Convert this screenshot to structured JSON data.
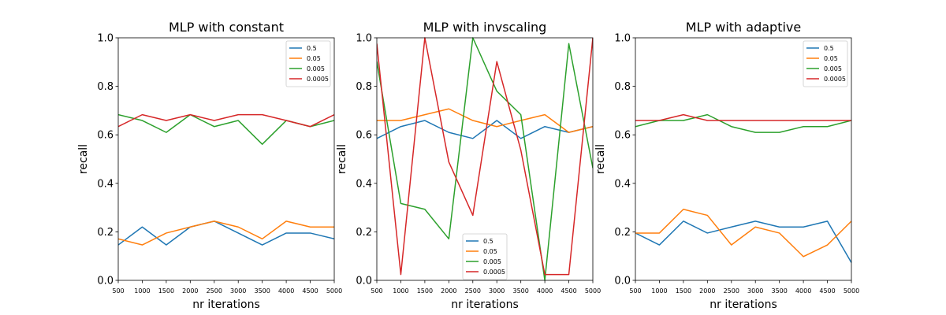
{
  "colors": {
    "0.5": "#1f77b4",
    "0.05": "#ff7f0e",
    "0.005": "#2ca02c",
    "0.0005": "#d62728"
  },
  "chart_data": [
    {
      "type": "line",
      "title": "MLP with constant",
      "xlabel": "nr iterations",
      "ylabel": "recall",
      "xlim": [
        500,
        5000
      ],
      "ylim": [
        0.0,
        1.0
      ],
      "x": [
        500,
        1000,
        1500,
        2000,
        2500,
        3000,
        3500,
        4000,
        4500,
        5000
      ],
      "xticks": [
        "500",
        "1000",
        "1500",
        "2000",
        "2500",
        "3000",
        "3500",
        "4000",
        "4500",
        "5000"
      ],
      "yticks": [
        "0.0",
        "0.2",
        "0.4",
        "0.6",
        "0.8",
        "1.0"
      ],
      "legend": "top-right",
      "series": [
        {
          "name": "0.5",
          "values": [
            0.146,
            0.22,
            0.146,
            0.22,
            0.244,
            0.195,
            0.146,
            0.195,
            0.195,
            0.171
          ]
        },
        {
          "name": "0.05",
          "values": [
            0.171,
            0.146,
            0.195,
            0.22,
            0.244,
            0.22,
            0.171,
            0.244,
            0.22,
            0.22
          ]
        },
        {
          "name": "0.005",
          "values": [
            0.683,
            0.659,
            0.61,
            0.683,
            0.634,
            0.659,
            0.561,
            0.659,
            0.634,
            0.659
          ]
        },
        {
          "name": "0.0005",
          "values": [
            0.634,
            0.683,
            0.659,
            0.683,
            0.659,
            0.683,
            0.683,
            0.659,
            0.634,
            0.683
          ]
        }
      ]
    },
    {
      "type": "line",
      "title": "MLP with invscaling",
      "xlabel": "nr iterations",
      "ylabel": "recall",
      "xlim": [
        500,
        5000
      ],
      "ylim": [
        0.0,
        1.0
      ],
      "x": [
        500,
        1000,
        1500,
        2000,
        2500,
        3000,
        3500,
        4000,
        4500,
        5000
      ],
      "xticks": [
        "500",
        "1000",
        "1500",
        "2000",
        "2500",
        "3000",
        "3500",
        "4000",
        "4500",
        "5000"
      ],
      "yticks": [
        "0.0",
        "0.2",
        "0.4",
        "0.6",
        "0.8",
        "1.0"
      ],
      "legend": "bottom-center",
      "series": [
        {
          "name": "0.5",
          "values": [
            0.585,
            0.634,
            0.659,
            0.61,
            0.585,
            0.659,
            0.585,
            0.634,
            0.61,
            0.634
          ]
        },
        {
          "name": "0.05",
          "values": [
            0.659,
            0.659,
            0.683,
            0.707,
            0.659,
            0.634,
            0.659,
            0.683,
            0.61,
            0.634
          ]
        },
        {
          "name": "0.005",
          "values": [
            0.902,
            0.317,
            0.293,
            0.171,
            1.0,
            0.78,
            0.683,
            0.0,
            0.976,
            0.463
          ]
        },
        {
          "name": "0.0005",
          "values": [
            0.976,
            0.024,
            1.0,
            0.488,
            0.268,
            0.902,
            0.537,
            0.024,
            0.024,
            1.0
          ]
        }
      ]
    },
    {
      "type": "line",
      "title": "MLP with adaptive",
      "xlabel": "nr iterations",
      "ylabel": "recall",
      "xlim": [
        500,
        5000
      ],
      "ylim": [
        0.0,
        1.0
      ],
      "x": [
        500,
        1000,
        1500,
        2000,
        2500,
        3000,
        3500,
        4000,
        4500,
        5000
      ],
      "xticks": [
        "500",
        "1000",
        "1500",
        "2000",
        "2500",
        "3000",
        "3500",
        "4000",
        "4500",
        "5000"
      ],
      "yticks": [
        "0.0",
        "0.2",
        "0.4",
        "0.6",
        "0.8",
        "1.0"
      ],
      "legend": "top-right",
      "series": [
        {
          "name": "0.5",
          "values": [
            0.195,
            0.146,
            0.244,
            0.195,
            0.22,
            0.244,
            0.22,
            0.22,
            0.244,
            0.073
          ]
        },
        {
          "name": "0.05",
          "values": [
            0.195,
            0.195,
            0.293,
            0.268,
            0.146,
            0.22,
            0.195,
            0.098,
            0.146,
            0.244
          ]
        },
        {
          "name": "0.005",
          "values": [
            0.634,
            0.659,
            0.659,
            0.683,
            0.634,
            0.61,
            0.61,
            0.634,
            0.634,
            0.659
          ]
        },
        {
          "name": "0.0005",
          "values": [
            0.659,
            0.659,
            0.683,
            0.659,
            0.659,
            0.659,
            0.659,
            0.659,
            0.659,
            0.659
          ]
        }
      ]
    }
  ]
}
